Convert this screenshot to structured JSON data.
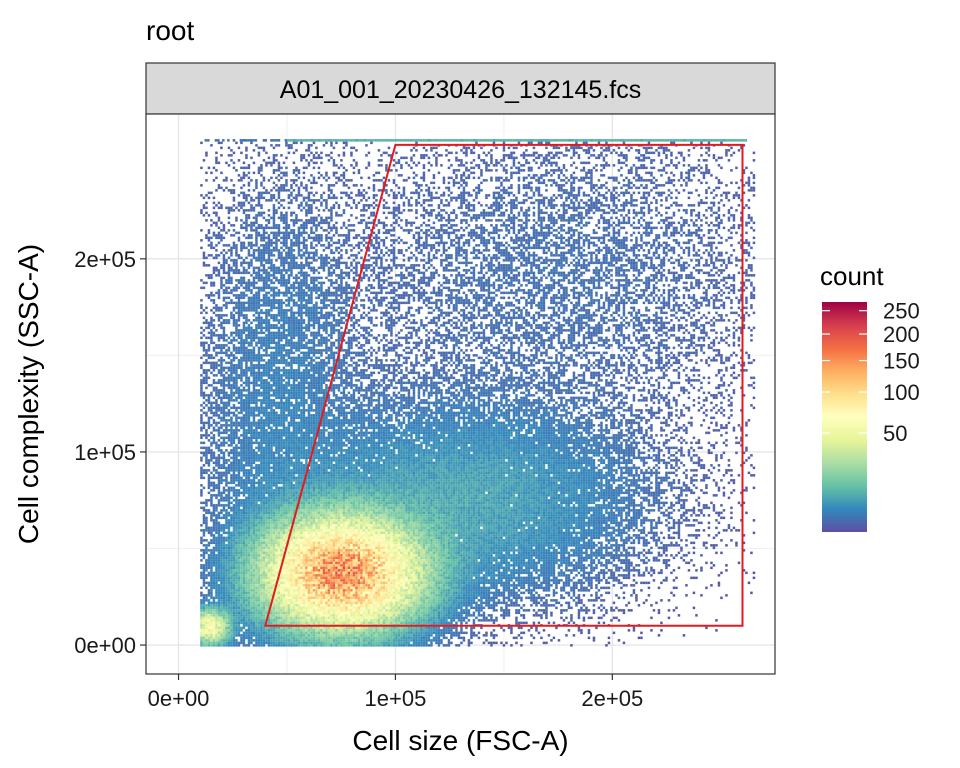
{
  "chart_data": {
    "type": "heatmap",
    "title": "root",
    "facet_label": "A01_001_20230426_132145.fcs",
    "xlabel": "Cell size (FSC-A)",
    "ylabel": "Cell complexity (SSC-A)",
    "xlim": [
      -15000,
      275000
    ],
    "ylim": [
      -15000,
      275000
    ],
    "x_ticks": [
      {
        "value": 0,
        "label": "0e+00"
      },
      {
        "value": 100000,
        "label": "1e+05"
      },
      {
        "value": 200000,
        "label": "2e+05"
      }
    ],
    "y_ticks": [
      {
        "value": 0,
        "label": "0e+00"
      },
      {
        "value": 100000,
        "label": "1e+05"
      },
      {
        "value": 200000,
        "label": "2e+05"
      }
    ],
    "grid": true,
    "legend": {
      "title": "count",
      "placement": "right",
      "scale_max": 270,
      "breaks": [
        {
          "value": 250,
          "label": "250"
        },
        {
          "value": 200,
          "label": "200"
        },
        {
          "value": 150,
          "label": "150"
        },
        {
          "value": 100,
          "label": "100"
        },
        {
          "value": 50,
          "label": "50"
        }
      ],
      "palette": [
        "#5E4FA2",
        "#3288BD",
        "#66C2A5",
        "#ABDDA4",
        "#E6F598",
        "#FFFFBF",
        "#FEE08B",
        "#FDAE61",
        "#F46D43",
        "#D53E4F",
        "#9E0142"
      ]
    },
    "density_clusters": [
      {
        "center_x": 75000,
        "center_y": 38000,
        "spread_x": 20000,
        "spread_y": 16000,
        "peak_count": 150
      },
      {
        "center_x": 14000,
        "center_y": 10000,
        "spread_x": 5000,
        "spread_y": 5000,
        "peak_count": 60
      },
      {
        "center_x": 130000,
        "center_y": 75000,
        "spread_x": 45000,
        "spread_y": 28000,
        "peak_count": 6
      },
      {
        "center_x": 45000,
        "center_y": 120000,
        "spread_x": 22000,
        "spread_y": 70000,
        "peak_count": 2
      },
      {
        "center_x": 170000,
        "center_y": 190000,
        "spread_x": 65000,
        "spread_y": 50000,
        "peak_count": 1
      }
    ],
    "saturation_band": {
      "y": 262000,
      "x_range": [
        12000,
        262000
      ]
    },
    "gate": {
      "color": "#e41a1c",
      "vertices": [
        {
          "x": 40000,
          "y": 10000
        },
        {
          "x": 100000,
          "y": 259000
        },
        {
          "x": 260000,
          "y": 259000
        },
        {
          "x": 260000,
          "y": 10000
        }
      ]
    }
  }
}
